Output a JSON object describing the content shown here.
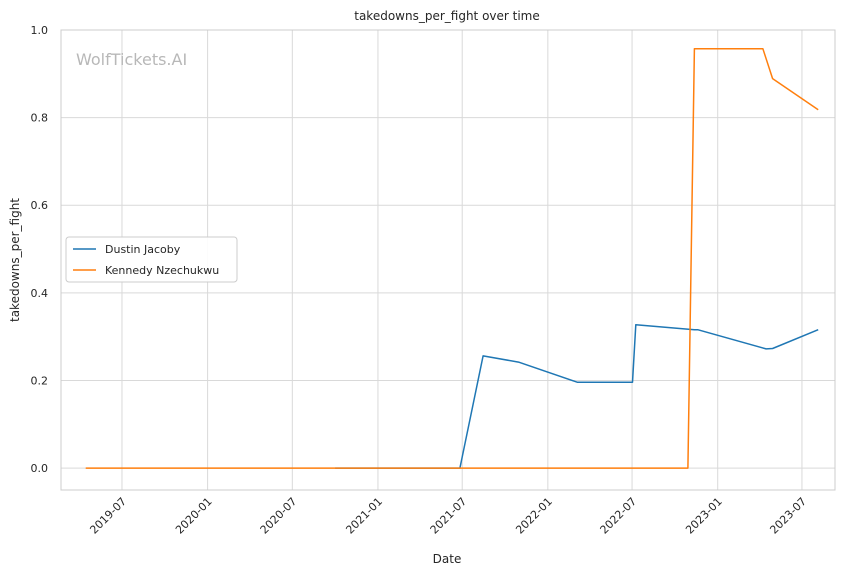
{
  "chart_data": {
    "type": "line",
    "title": "takedowns_per_fight over time",
    "xlabel": "Date",
    "ylabel": "takedowns_per_fight",
    "watermark": "WolfTickets.AI",
    "grid": true,
    "legend_position": "center-left",
    "xlim": [
      "2019-02-20",
      "2023-09-10"
    ],
    "ylim": [
      -0.05,
      1.0
    ],
    "x_ticks": [
      "2019-07",
      "2020-01",
      "2020-07",
      "2021-01",
      "2021-07",
      "2022-01",
      "2022-07",
      "2023-01",
      "2023-07"
    ],
    "y_ticks": [
      0.0,
      0.2,
      0.4,
      0.6,
      0.8,
      1.0
    ],
    "y_tick_labels": [
      "0.0",
      "0.2",
      "0.4",
      "0.6",
      "0.8",
      "1.0"
    ],
    "series": [
      {
        "name": "Dustin Jacoby",
        "color": "#1f77b4",
        "points": [
          {
            "x": "2020-10-01",
            "y": 0.0
          },
          {
            "x": "2021-06-26",
            "y": 0.0
          },
          {
            "x": "2021-08-15",
            "y": 0.256
          },
          {
            "x": "2021-10-30",
            "y": 0.242
          },
          {
            "x": "2022-03-05",
            "y": 0.196
          },
          {
            "x": "2022-07-02",
            "y": 0.196
          },
          {
            "x": "2022-07-09",
            "y": 0.327
          },
          {
            "x": "2022-11-12",
            "y": 0.316
          },
          {
            "x": "2022-11-19",
            "y": 0.316
          },
          {
            "x": "2023-04-15",
            "y": 0.272
          },
          {
            "x": "2023-04-29",
            "y": 0.273
          },
          {
            "x": "2023-08-05",
            "y": 0.316
          }
        ]
      },
      {
        "name": "Kennedy Nzechukwu",
        "color": "#ff7f0e",
        "points": [
          {
            "x": "2019-04-14",
            "y": 0.0
          },
          {
            "x": "2022-10-29",
            "y": 0.0
          },
          {
            "x": "2022-11-12",
            "y": 0.957
          },
          {
            "x": "2023-04-08",
            "y": 0.957
          },
          {
            "x": "2023-04-29",
            "y": 0.889
          },
          {
            "x": "2023-08-05",
            "y": 0.818
          }
        ]
      }
    ]
  }
}
